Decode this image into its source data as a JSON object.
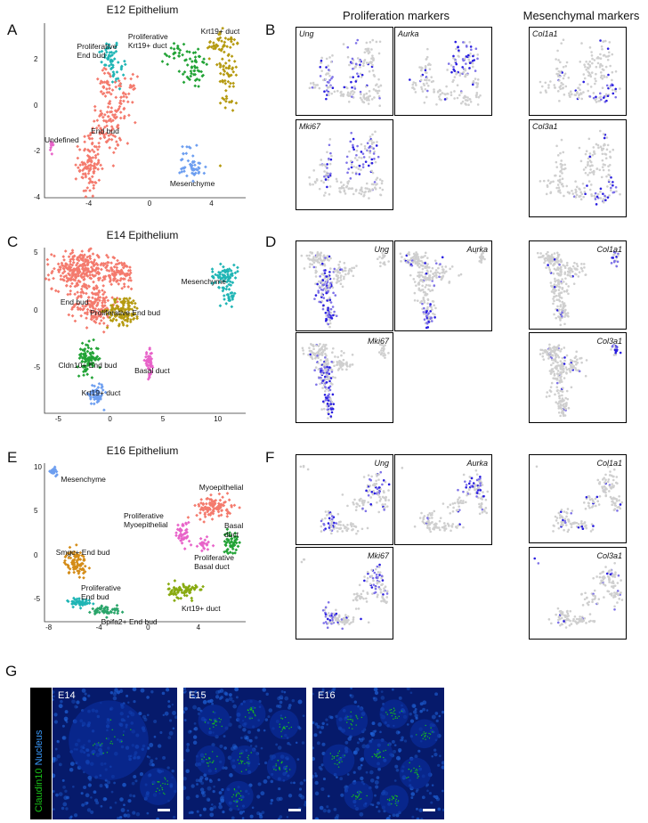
{
  "panel_letters": {
    "A": "A",
    "B": "B",
    "C": "C",
    "D": "D",
    "E": "E",
    "F": "F",
    "G": "G"
  },
  "column_headers": {
    "proliferation": "Proliferation markers",
    "mesenchymal": "Mesenchymal markers"
  },
  "genes": {
    "ung": "Ung",
    "aurka": "Aurka",
    "mki67": "Mki67",
    "col1a1": "Col1a1",
    "col3a1": "Col3a1"
  },
  "chart_data": [
    {
      "type": "scatter",
      "title": "E12 Epithelium",
      "xlim": [
        -7,
        6
      ],
      "ylim": [
        -4,
        3.6
      ],
      "xticks": [
        "-4",
        "0",
        "4"
      ],
      "yticks": [
        "2",
        "0",
        "-2",
        "-4"
      ],
      "clusters": [
        {
          "name": "Proliferative End bud",
          "color": "#1fb5b5",
          "label": "Proliferative\nEnd bud"
        },
        {
          "name": "Proliferative Krt19+ duct",
          "color": "#22a336",
          "label": "Proliferative\nKrt19+ duct"
        },
        {
          "name": "Krt19+ duct",
          "color": "#b59a10",
          "label": "Krt19+ duct"
        },
        {
          "name": "End bud",
          "color": "#f47a6d",
          "label": "End bud"
        },
        {
          "name": "Undefined",
          "color": "#e863c9",
          "label": "Undefined"
        },
        {
          "name": "Mesenchyme",
          "color": "#6d9ef0",
          "label": "Mesenchyme"
        }
      ]
    },
    {
      "type": "scatter",
      "title": "E14 Epithelium",
      "xlim": [
        -6.5,
        12.5
      ],
      "ylim": [
        -9,
        5.5
      ],
      "xticks": [
        "-5",
        "0",
        "5",
        "10"
      ],
      "yticks": [
        "5",
        "0",
        "-5"
      ],
      "clusters": [
        {
          "name": "End bud",
          "color": "#f47a6d",
          "label": "End bud"
        },
        {
          "name": "Proliferative End bud",
          "color": "#b59a10",
          "label": "Proliferative End bud"
        },
        {
          "name": "Mesenchyme",
          "color": "#1fb5b5",
          "label": "Mesenchyme"
        },
        {
          "name": "Cldn10+ End bud",
          "color": "#22a336",
          "label": "Cldn10+ End bud"
        },
        {
          "name": "Basal duct",
          "color": "#e863c9",
          "label": "Basal duct"
        },
        {
          "name": "Krt19+ duct",
          "color": "#6d9ef0",
          "label": "Krt19+ duct"
        }
      ]
    },
    {
      "type": "scatter",
      "title": "E16 Epithelium",
      "xlim": [
        -8.5,
        7.5
      ],
      "ylim": [
        -7.5,
        10.5
      ],
      "xticks": [
        "-8",
        "-4",
        "0",
        "4"
      ],
      "yticks": [
        "10",
        "5",
        "0",
        "-5"
      ],
      "clusters": [
        {
          "name": "Mesenchyme",
          "color": "#6d9ef0",
          "label": "Mesenchyme"
        },
        {
          "name": "Myoepithelial",
          "color": "#f47a6d",
          "label": "Myoepithelial"
        },
        {
          "name": "Proliferative Myoepithelial",
          "color": "#e863c9",
          "label": "Proliferative\nMyoepithelial"
        },
        {
          "name": "Basal duct",
          "color": "#22a336",
          "label": "Basal\nduct"
        },
        {
          "name": "Proliferative Basal duct",
          "color": "#e863c9",
          "label": "Proliferative\nBasal duct"
        },
        {
          "name": "Smgc+ End bud",
          "color": "#d48c18",
          "label": "Smgc+ End bud"
        },
        {
          "name": "Proliferative End bud",
          "color": "#1fb5b5",
          "label": "Proliferative\nEnd bud"
        },
        {
          "name": "Krt19+ duct",
          "color": "#88aa10",
          "label": "Krt19+ duct"
        },
        {
          "name": "Bpifa2+ End bud",
          "color": "#2aa56a",
          "label": "Bpifa2+ End bud"
        }
      ]
    }
  ],
  "microscopy": {
    "stain_label_claudin": "Claudin10",
    "stain_label_nucleus": "Nucleus",
    "stages": [
      "E14",
      "E15",
      "E16"
    ],
    "claudin_color": "#18c218",
    "nucleus_color": "#1f62d8"
  }
}
